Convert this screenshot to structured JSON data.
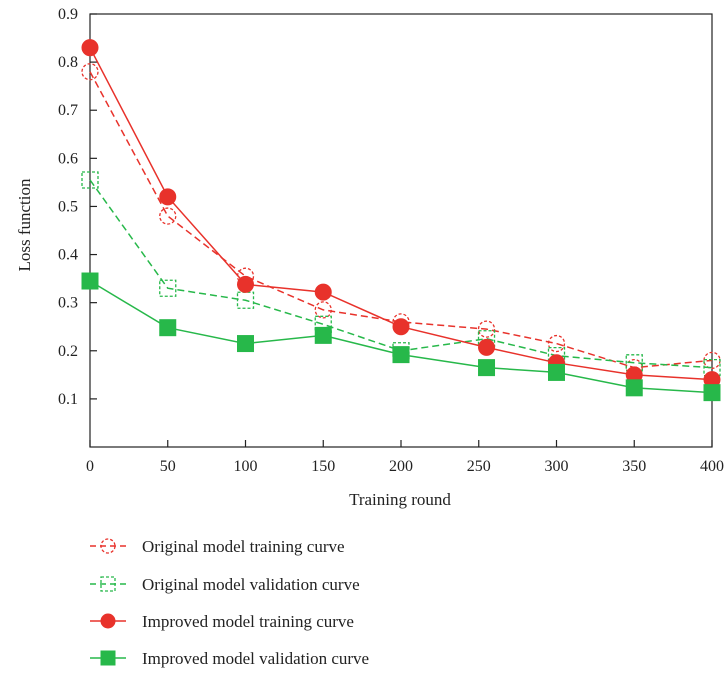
{
  "chart_data": {
    "type": "line",
    "xlabel": "Training round",
    "ylabel": "Loss function",
    "xlim": [
      0,
      400
    ],
    "ylim": [
      0,
      0.9
    ],
    "x_ticks": [
      0,
      50,
      100,
      150,
      200,
      250,
      300,
      350,
      400
    ],
    "y_ticks": [
      0.1,
      0.2,
      0.3,
      0.4,
      0.5,
      0.6,
      0.7,
      0.8,
      0.9
    ],
    "x_tick_labels": [
      "0",
      "50",
      "100",
      "150",
      "200",
      "250",
      "300",
      "350",
      "400"
    ],
    "y_tick_labels": [
      "0.1",
      "0.2",
      "0.3",
      "0.4",
      "0.5",
      "0.6",
      "0.7",
      "0.8",
      "0.9"
    ],
    "grid": false,
    "legend_placement": "bottom",
    "series": [
      {
        "name": "Original model training curve",
        "color": "#e8322b",
        "line_style": "dashed",
        "marker": "hollow-circle",
        "x": [
          0,
          50,
          100,
          150,
          200,
          255,
          300,
          350,
          400
        ],
        "y": [
          0.78,
          0.48,
          0.355,
          0.285,
          0.26,
          0.245,
          0.215,
          0.165,
          0.18
        ]
      },
      {
        "name": "Original model validation curve",
        "color": "#27b84a",
        "line_style": "dashed",
        "marker": "hollow-square",
        "x": [
          0,
          50,
          100,
          150,
          200,
          255,
          300,
          350,
          400
        ],
        "y": [
          0.555,
          0.33,
          0.305,
          0.255,
          0.2,
          0.225,
          0.19,
          0.175,
          0.165
        ]
      },
      {
        "name": "Improved model training curve",
        "color": "#e8322b",
        "line_style": "solid",
        "marker": "filled-circle",
        "x": [
          0,
          50,
          100,
          150,
          200,
          255,
          300,
          350,
          400
        ],
        "y": [
          0.83,
          0.52,
          0.338,
          0.322,
          0.25,
          0.207,
          0.175,
          0.15,
          0.14
        ]
      },
      {
        "name": "Improved model validation curve",
        "color": "#27b84a",
        "line_style": "solid",
        "marker": "filled-square",
        "x": [
          0,
          50,
          100,
          150,
          200,
          255,
          300,
          350,
          400
        ],
        "y": [
          0.345,
          0.248,
          0.215,
          0.232,
          0.192,
          0.165,
          0.155,
          0.123,
          0.113
        ]
      }
    ]
  }
}
